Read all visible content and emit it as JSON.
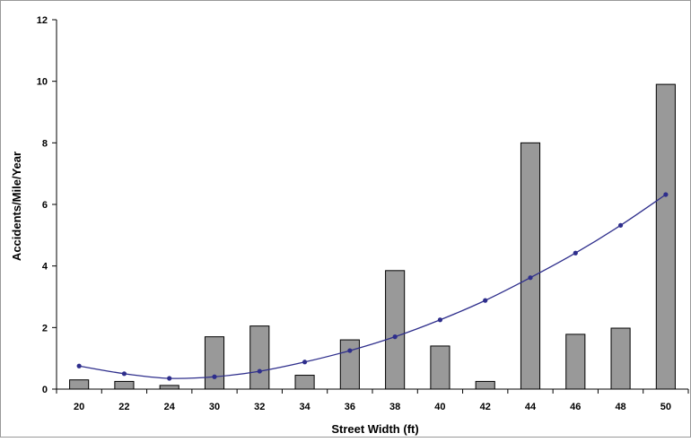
{
  "chart_data": {
    "type": "bar",
    "categories": [
      "20",
      "22",
      "24",
      "30",
      "32",
      "34",
      "36",
      "38",
      "40",
      "42",
      "44",
      "46",
      "48",
      "50"
    ],
    "series": [
      {
        "type": "bar",
        "values": [
          0.3,
          0.25,
          0.12,
          1.7,
          2.05,
          0.45,
          1.6,
          3.85,
          1.4,
          0.25,
          8.0,
          1.78,
          1.98,
          9.9
        ]
      },
      {
        "type": "line",
        "values": [
          0.75,
          0.5,
          0.35,
          0.4,
          0.58,
          0.88,
          1.25,
          1.7,
          2.25,
          2.88,
          3.62,
          4.42,
          5.32,
          6.32
        ]
      }
    ],
    "xlabel": "Street Width (ft)",
    "ylabel": "Accidents/Mile/Year",
    "ylim": [
      0,
      12
    ],
    "yticks": [
      "0",
      "2",
      "4",
      "6",
      "8",
      "10",
      "12"
    ],
    "grid": false,
    "colors": {
      "bar_fill": "#999999",
      "bar_stroke": "#000000",
      "line": "#2e2e8c",
      "marker": "#2e2e8c",
      "axis": "#000000",
      "frame": "#999999"
    }
  }
}
